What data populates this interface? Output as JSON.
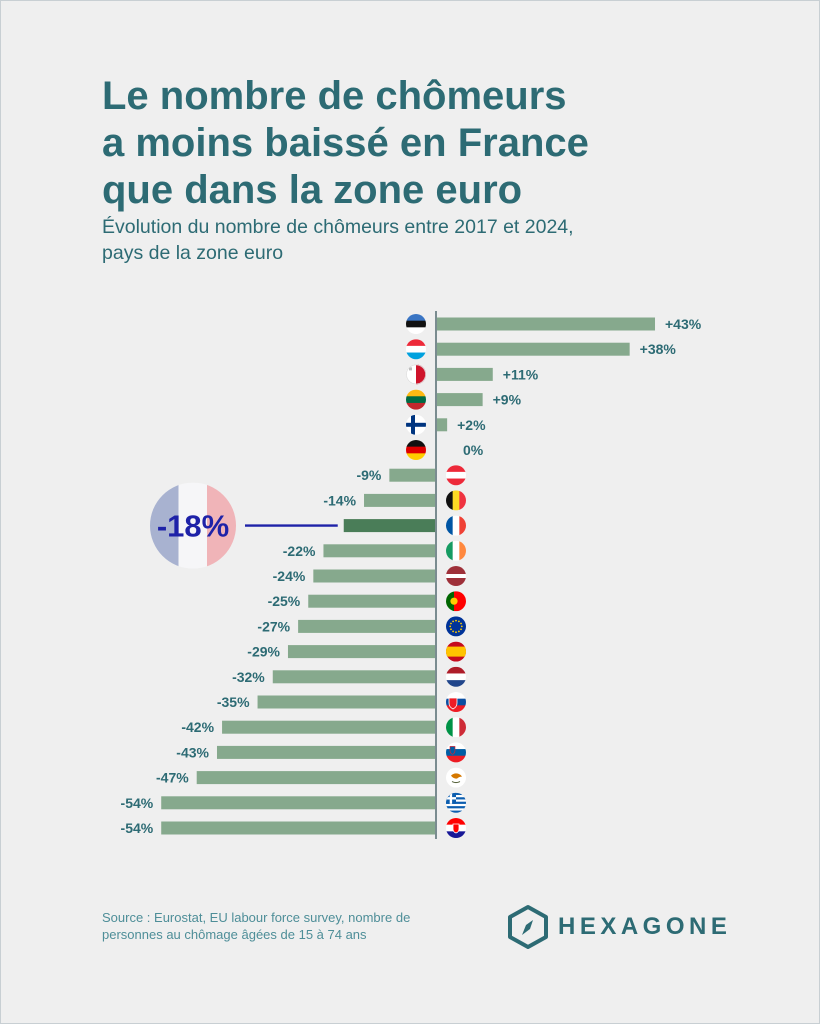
{
  "title_lines": [
    "Le nombre de chômeurs",
    "a moins baissé en France",
    "que dans la zone euro"
  ],
  "subtitle_lines": [
    "Évolution du nombre de chômeurs entre 2017 et 2024,",
    "pays de la zone euro"
  ],
  "source_lines": [
    "Source : Eurostat, EU labour force survey, nombre de",
    "personnes au chômage âgées de 15 à 74 ans"
  ],
  "brand": "HEXAGONE",
  "colors": {
    "bar": "#86a98d",
    "highlight_bar": "#4a7d58",
    "text": "#2d6b74",
    "highlight_text": "#1e22a8",
    "background": "#efefef"
  },
  "chart_data": {
    "type": "bar",
    "orientation": "horizontal",
    "unit": "%",
    "highlight": {
      "category": "France",
      "label": "-18%"
    },
    "categories": [
      "Estonie",
      "Luxembourg",
      "Malte",
      "Lituanie",
      "Finlande",
      "Allemagne",
      "Autriche",
      "Belgique",
      "France",
      "Irlande",
      "Lettonie",
      "Portugal",
      "Zone euro",
      "Espagne",
      "Pays-Bas",
      "Slovaquie",
      "Italie",
      "Slovénie",
      "Chypre",
      "Grèce",
      "Croatie"
    ],
    "values": [
      43,
      38,
      11,
      9,
      2,
      0,
      -9,
      -14,
      -18,
      -22,
      -24,
      -25,
      -27,
      -29,
      -32,
      -35,
      -42,
      -43,
      -47,
      -54,
      -54
    ],
    "labels": [
      "+43%",
      "+38%",
      "+11%",
      "+9%",
      "+2%",
      "0%",
      "-9%",
      "-14%",
      "",
      "-22%",
      "-24%",
      "-25%",
      "-27%",
      "-29%",
      "-32%",
      "-35%",
      "-42%",
      "-43%",
      "-47%",
      "-54%",
      "-54%"
    ],
    "flags": [
      "estonia-flag-icon",
      "luxembourg-flag-icon",
      "malta-flag-icon",
      "lithuania-flag-icon",
      "finland-flag-icon",
      "germany-flag-icon",
      "austria-flag-icon",
      "belgium-flag-icon",
      "france-flag-icon",
      "ireland-flag-icon",
      "latvia-flag-icon",
      "portugal-flag-icon",
      "eu-flag-icon",
      "spain-flag-icon",
      "netherlands-flag-icon",
      "slovakia-flag-icon",
      "italy-flag-icon",
      "slovenia-flag-icon",
      "cyprus-flag-icon",
      "greece-flag-icon",
      "croatia-flag-icon"
    ]
  }
}
